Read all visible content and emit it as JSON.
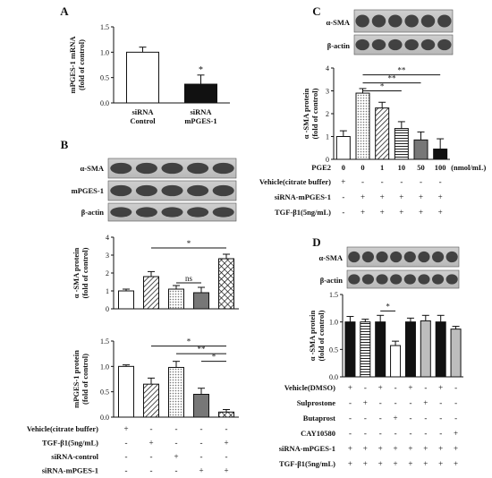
{
  "chart_data": [
    {
      "panel": "A",
      "type": "bar",
      "ylabel": [
        "mPGES-1 mRNA",
        "(fold of control)"
      ],
      "ylim": [
        0,
        1.5
      ],
      "yticks": [
        "0.0",
        "0.5",
        "1.0",
        "1.5"
      ],
      "categories": [
        [
          "siRNA",
          "Control"
        ],
        [
          "siRNA",
          "mPGES-1"
        ]
      ],
      "values": [
        1.0,
        0.37
      ],
      "errors": [
        0.1,
        0.18
      ],
      "fills": [
        "white",
        "black"
      ],
      "stars": [
        {
          "bar": 1,
          "text": "*"
        }
      ]
    },
    {
      "panel": "B",
      "blot_labels": [
        "α-SMA",
        "mPGES-1",
        "β-actin"
      ],
      "subplots": [
        {
          "type": "bar",
          "ylabel": [
            "α -SMA protein",
            "(fold of control)"
          ],
          "ylim": [
            0,
            4
          ],
          "yticks": [
            "0",
            "1",
            "2",
            "3",
            "4"
          ],
          "values": [
            1.0,
            1.8,
            1.1,
            0.9,
            2.8
          ],
          "errors": [
            0.1,
            0.28,
            0.2,
            0.3,
            0.25
          ],
          "fills": [
            "white",
            "diag",
            "dots",
            "gray",
            "cross"
          ],
          "annotations": [
            {
              "from": 1,
              "to": 4,
              "text": "*",
              "y": 3.4
            },
            {
              "from": 2,
              "to": 3,
              "text": "ns",
              "y": 1.45
            }
          ]
        },
        {
          "type": "bar",
          "ylabel": [
            "mPGES-1 protein",
            "(fold of control)"
          ],
          "ylim": [
            0,
            1.5
          ],
          "yticks": [
            "0.0",
            "0.5",
            "1.0",
            "1.5"
          ],
          "values": [
            1.0,
            0.65,
            0.98,
            0.45,
            0.1
          ],
          "errors": [
            0.03,
            0.12,
            0.12,
            0.12,
            0.05
          ],
          "fills": [
            "white",
            "diag",
            "dots",
            "gray",
            "cross"
          ],
          "annotations": [
            {
              "from": 1,
              "to": 4,
              "text": "*",
              "y": 1.4
            },
            {
              "from": 2,
              "to": 4,
              "text": "**",
              "y": 1.25
            },
            {
              "from": 3,
              "to": 4,
              "text": "*",
              "y": 1.1
            }
          ]
        }
      ],
      "conditions": [
        {
          "label": "Vehicle(citrate buffer)",
          "marks": [
            "+",
            "-",
            "-",
            "-",
            "-"
          ]
        },
        {
          "label": "TGF-β1(5ng/mL)",
          "marks": [
            "-",
            "+",
            "-",
            "-",
            "+"
          ]
        },
        {
          "label": "siRNA-control",
          "marks": [
            "-",
            "-",
            "+",
            "-",
            "-"
          ]
        },
        {
          "label": "siRNA-mPGES-1",
          "marks": [
            "-",
            "-",
            "-",
            "+",
            "+"
          ]
        }
      ]
    },
    {
      "panel": "C",
      "type": "bar",
      "blot_labels": [
        "α-SMA",
        "β-actin"
      ],
      "ylabel": [
        "α -SMA protein",
        "(fold of control)"
      ],
      "ylim": [
        0,
        4
      ],
      "yticks": [
        "0",
        "1",
        "2",
        "3",
        "4"
      ],
      "values": [
        1.0,
        2.9,
        2.25,
        1.35,
        0.85,
        0.45
      ],
      "errors": [
        0.25,
        0.2,
        0.25,
        0.3,
        0.35,
        0.45
      ],
      "fills": [
        "white",
        "dots",
        "diag",
        "hlines",
        "gray",
        "black"
      ],
      "annotations": [
        {
          "from": 1,
          "to": 5,
          "text": "**",
          "y": 3.7
        },
        {
          "from": 1,
          "to": 4,
          "text": "**",
          "y": 3.35
        },
        {
          "from": 1,
          "to": 3,
          "text": "*",
          "y": 3.0
        }
      ],
      "pge2_label": "PGE2",
      "pge2_values": [
        "0",
        "0",
        "1",
        "10",
        "50",
        "100"
      ],
      "pge2_unit": "(nmol/mL)",
      "conditions": [
        {
          "label": "Vehicle(citrate buffer)",
          "marks": [
            "+",
            "-",
            "-",
            "-",
            "-",
            "-"
          ]
        },
        {
          "label": "siRNA-mPGES-1",
          "marks": [
            "-",
            "+",
            "+",
            "+",
            "+",
            "+"
          ]
        },
        {
          "label": "TGF-β1(5ng/mL)",
          "marks": [
            "-",
            "+",
            "+",
            "+",
            "+",
            "+"
          ]
        }
      ]
    },
    {
      "panel": "D",
      "type": "bar",
      "blot_labels": [
        "α-SMA",
        "β-actin"
      ],
      "ylabel": [
        "α -SMA protein",
        "(fold of control)"
      ],
      "ylim": [
        0,
        1.5
      ],
      "yticks": [
        "0.0",
        "0.5",
        "1.0",
        "1.5"
      ],
      "values": [
        1.0,
        1.0,
        1.0,
        0.57,
        1.0,
        1.02,
        1.0,
        0.87
      ],
      "errors": [
        0.1,
        0.05,
        0.12,
        0.08,
        0.07,
        0.1,
        0.12,
        0.05
      ],
      "fills": [
        "black",
        "hlines",
        "black",
        "white",
        "black",
        "lightgray",
        "black",
        "lightgray"
      ],
      "annotations": [
        {
          "from": 2,
          "to": 3,
          "text": "*",
          "y": 1.2
        }
      ],
      "conditions": [
        {
          "label": "Vehicle(DMSO)",
          "marks": [
            "+",
            "-",
            "+",
            "-",
            "+",
            "-",
            "+",
            "-"
          ]
        },
        {
          "label": "Sulprostone",
          "marks": [
            "-",
            "+",
            "-",
            "-",
            "-",
            "+",
            "-",
            "-"
          ]
        },
        {
          "label": "Butaprost",
          "marks": [
            "-",
            "-",
            "-",
            "+",
            "-",
            "-",
            "-",
            "-"
          ]
        },
        {
          "label": "CAY10580",
          "marks": [
            "-",
            "-",
            "-",
            "-",
            "-",
            "-",
            "-",
            "+"
          ]
        },
        {
          "label": "siRNA-mPGES-1",
          "marks": [
            "+",
            "+",
            "+",
            "+",
            "+",
            "+",
            "+",
            "+"
          ]
        },
        {
          "label": "TGF-β1(5ng/mL)",
          "marks": [
            "+",
            "+",
            "+",
            "+",
            "+",
            "+",
            "+",
            "+"
          ]
        }
      ]
    }
  ]
}
